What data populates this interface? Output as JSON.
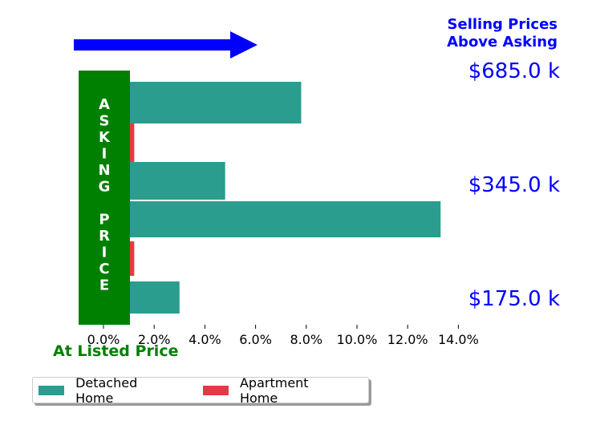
{
  "chart_data": {
    "type": "bar",
    "orientation": "horizontal",
    "title": "Selling Prices Above Asking",
    "title_lines": [
      "Selling Prices",
      "Above Asking"
    ],
    "xlabel_annotation": "At Listed Price",
    "vertical_banner_text": "ASKING PRICE",
    "banner_letters": [
      "A",
      "S",
      "K",
      "I",
      "N",
      "G",
      "",
      "P",
      "R",
      "I",
      "C",
      "E"
    ],
    "xlim": [
      -1.0,
      14.0
    ],
    "xticks": [
      0,
      2,
      4,
      6,
      8,
      10,
      12,
      14
    ],
    "xtick_labels": [
      "0.0%",
      "2.0%",
      "4.0%",
      "6.0%",
      "8.0%",
      "10.0%",
      "12.0%",
      "14.0%"
    ],
    "price_labels": [
      "$685.0 k",
      "$345.0 k",
      "$175.0 k"
    ],
    "series": [
      {
        "name": "Detached Home",
        "color": "#2a9d8f",
        "values": [
          7.8,
          4.8,
          13.3,
          3.0
        ]
      },
      {
        "name": "Apartment Home",
        "color": "#e63946",
        "values": [
          1.15,
          1.15
        ]
      }
    ],
    "grid": false,
    "legend_placement": "bottom-left"
  },
  "colors": {
    "arrow": "#0000ff",
    "banner": "#008000",
    "annotation_blue": "#0000ff",
    "annotation_green": "#008000"
  },
  "legend": [
    {
      "label": "Detached Home",
      "color": "#2a9d8f"
    },
    {
      "label": "Apartment Home",
      "color": "#e63946"
    }
  ]
}
